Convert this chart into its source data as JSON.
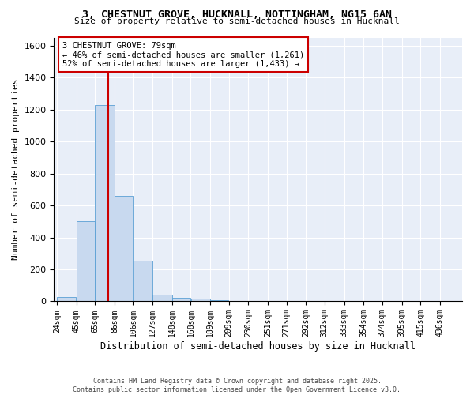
{
  "title": "3, CHESTNUT GROVE, HUCKNALL, NOTTINGHAM, NG15 6AN",
  "subtitle": "Size of property relative to semi-detached houses in Hucknall",
  "xlabel": "Distribution of semi-detached houses by size in Hucknall",
  "ylabel": "Number of semi-detached properties",
  "bar_color": "#c8d9ef",
  "bar_edge_color": "#5a9fd4",
  "background_color": "#e8eef8",
  "grid_color": "#ffffff",
  "bins": [
    24,
    45,
    65,
    86,
    106,
    127,
    148,
    168,
    189,
    209,
    230,
    251,
    271,
    292,
    312,
    333,
    354,
    374,
    395,
    415,
    436
  ],
  "bin_labels": [
    "24sqm",
    "45sqm",
    "65sqm",
    "86sqm",
    "106sqm",
    "127sqm",
    "148sqm",
    "168sqm",
    "189sqm",
    "209sqm",
    "230sqm",
    "251sqm",
    "271sqm",
    "292sqm",
    "312sqm",
    "333sqm",
    "354sqm",
    "374sqm",
    "395sqm",
    "415sqm",
    "436sqm"
  ],
  "bar_heights": [
    25,
    500,
    1230,
    660,
    255,
    40,
    20,
    15,
    5,
    0,
    0,
    0,
    0,
    0,
    0,
    0,
    0,
    0,
    0,
    0
  ],
  "property_size": 79,
  "property_name": "3 CHESTNUT GROVE: 79sqm",
  "pct_smaller": 46,
  "count_smaller": 1261,
  "pct_larger": 52,
  "count_larger": 1433,
  "red_line_color": "#cc0000",
  "annotation_border_color": "#cc0000",
  "ylim": [
    0,
    1650
  ],
  "yticks": [
    0,
    200,
    400,
    600,
    800,
    1000,
    1200,
    1400,
    1600
  ],
  "footer_line1": "Contains HM Land Registry data © Crown copyright and database right 2025.",
  "footer_line2": "Contains public sector information licensed under the Open Government Licence v3.0."
}
